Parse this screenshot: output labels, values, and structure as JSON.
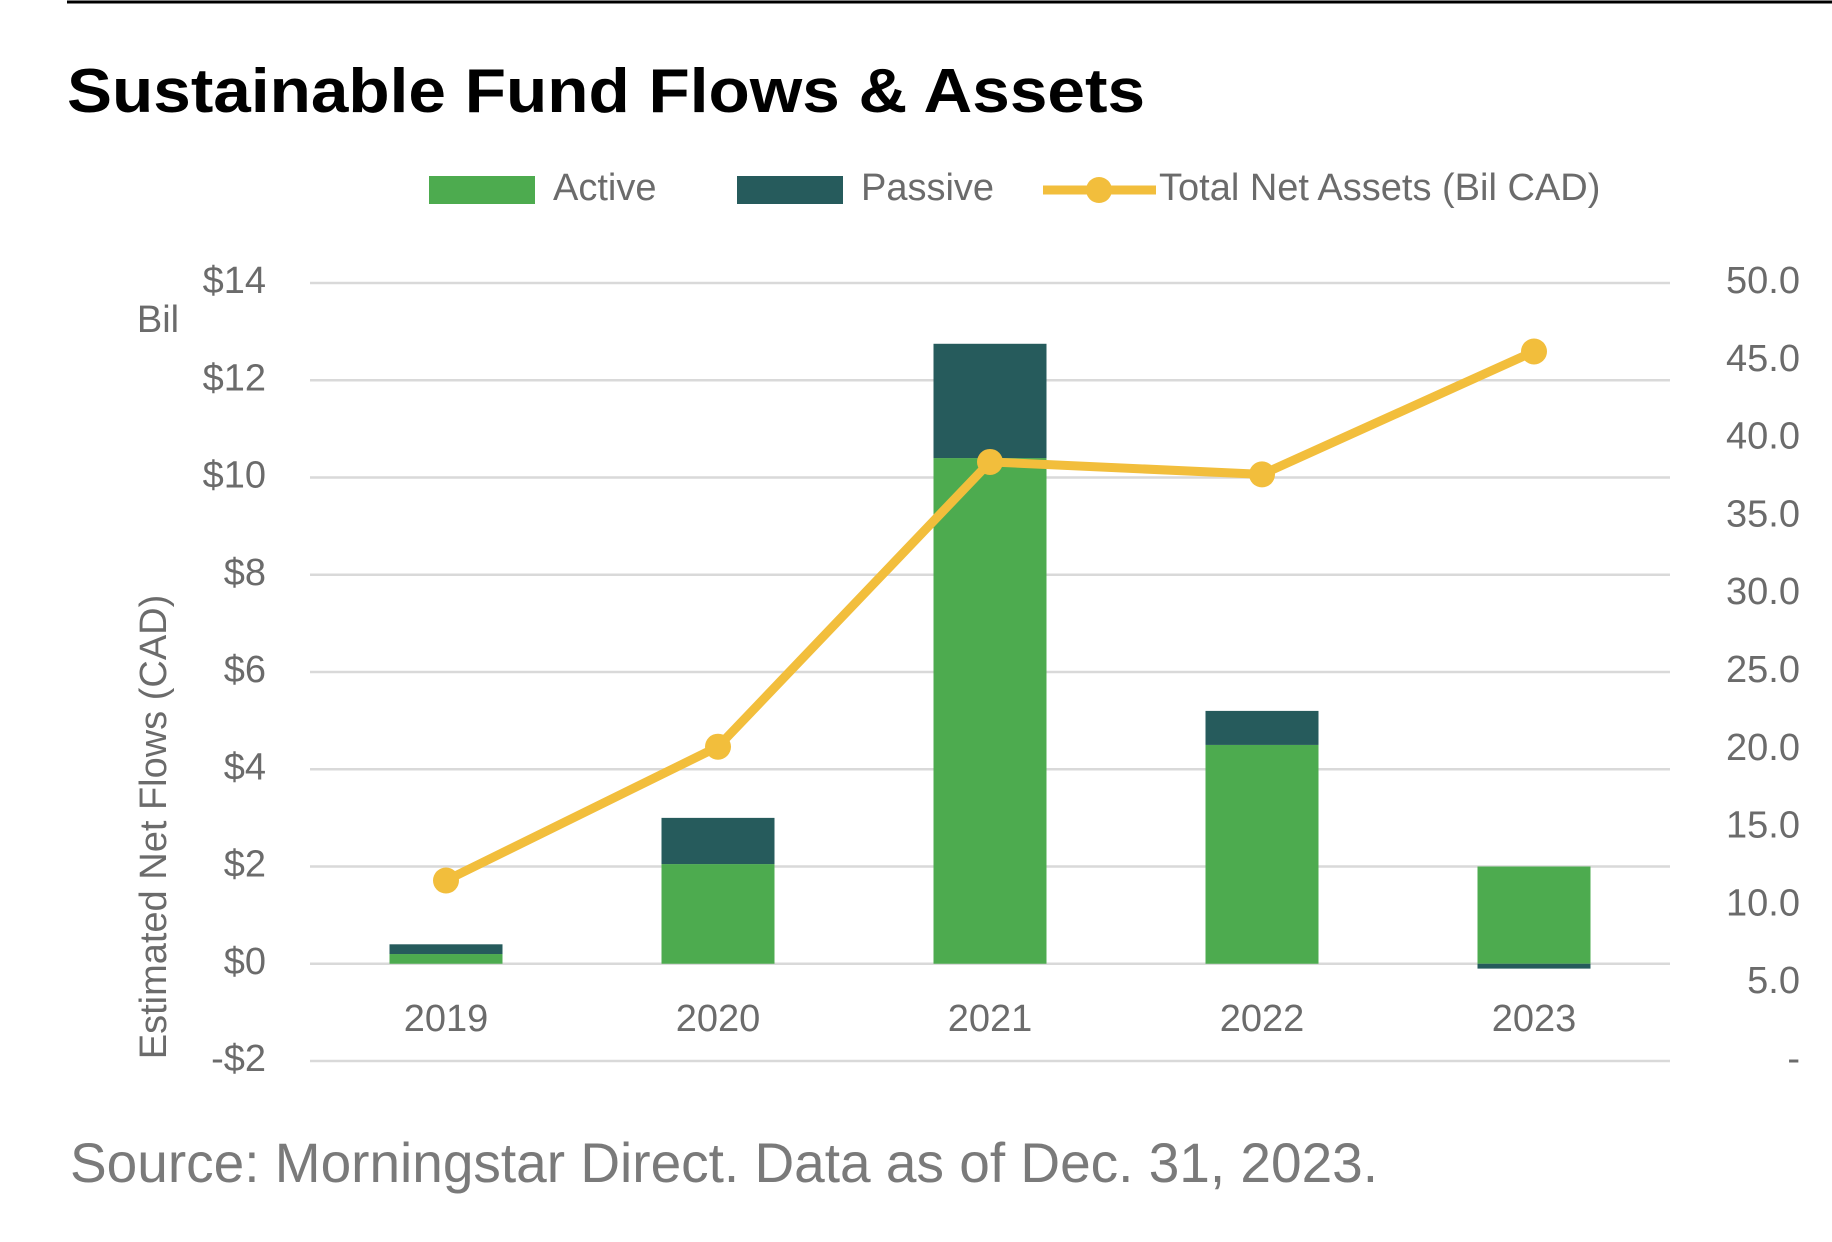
{
  "chart_data": {
    "type": "bar",
    "title": "Sustainable Fund Flows & Assets",
    "source": "Source: Morningstar Direct. Data as of Dec. 31, 2023.",
    "y_unit": "Bil",
    "y_label": "Estimated Net Flows (CAD)",
    "stacked": true,
    "categories": [
      "2019",
      "2020",
      "2021",
      "2022",
      "2023"
    ],
    "series": [
      {
        "name": "Active",
        "color": "#4dab4f",
        "values": [
          0.2,
          2.05,
          10.4,
          4.5,
          2.0
        ]
      },
      {
        "name": "Passive",
        "color": "#265b5c",
        "values": [
          0.2,
          0.95,
          2.35,
          0.7,
          -0.1
        ]
      },
      {
        "name": "Total Net Assets (Bil CAD)",
        "color": "#f2be3c",
        "axis": "y2",
        "values": [
          11.6,
          20.2,
          38.5,
          37.7,
          45.6
        ]
      }
    ],
    "ylim": [
      -2,
      14
    ],
    "yticks": [
      {
        "value": -2,
        "label": "-$2"
      },
      {
        "value": 0,
        "label": "$0"
      },
      {
        "value": 2,
        "label": "$2"
      },
      {
        "value": 4,
        "label": "$4"
      },
      {
        "value": 6,
        "label": "$6"
      },
      {
        "value": 8,
        "label": "$8"
      },
      {
        "value": 10,
        "label": "$10"
      },
      {
        "value": 12,
        "label": "$12"
      },
      {
        "value": 14,
        "label": "$14"
      }
    ],
    "y2lim": [
      0,
      50
    ],
    "y2ticks": [
      {
        "value": 0,
        "label": "-"
      },
      {
        "value": 5,
        "label": "5.0"
      },
      {
        "value": 10,
        "label": "10.0"
      },
      {
        "value": 15,
        "label": "15.0"
      },
      {
        "value": 20,
        "label": "20.0"
      },
      {
        "value": 25,
        "label": "25.0"
      },
      {
        "value": 30,
        "label": "30.0"
      },
      {
        "value": 35,
        "label": "35.0"
      },
      {
        "value": 40,
        "label": "40.0"
      },
      {
        "value": 45,
        "label": "45.0"
      },
      {
        "value": 50,
        "label": "50.0"
      }
    ],
    "grid": true,
    "legend": "top"
  }
}
